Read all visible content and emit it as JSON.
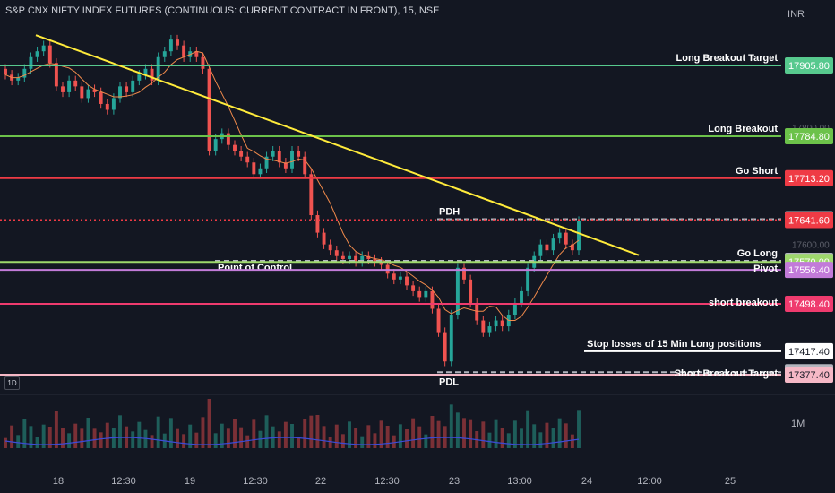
{
  "title": "S&P CNX NIFTY INDEX FUTURES (CONTINUOUS: CURRENT CONTRACT IN FRONT), 15, NSE",
  "currency": "INR",
  "volume_axis_label": "1M",
  "timeframe_badge": "1D",
  "colors": {
    "background": "#131722",
    "up": "#26a69a",
    "down": "#ef5350",
    "trendline": "#ffeb3b",
    "ma": "#f08a4b",
    "vol_ma": "#3c4bd8"
  },
  "chart_data": {
    "type": "candlestick",
    "x_ticks": [
      "18",
      "12:30",
      "19",
      "12:30",
      "22",
      "12:30",
      "23",
      "13:00",
      "24",
      "12:00",
      "25"
    ],
    "y_ticks_faint": [
      "17800.00",
      "17600.00"
    ],
    "horizontal_levels": [
      {
        "label": "Long Breakout Target",
        "price_label": "17905.80",
        "value": 17905.8,
        "color": "#57c98e"
      },
      {
        "label": "Long Breakout",
        "price_label": "17784.80",
        "value": 17784.8,
        "color": "#6cc24a"
      },
      {
        "label": "Go Short",
        "price_label": "17713.20",
        "value": 17713.2,
        "color": "#ef3b45"
      },
      {
        "label": "PDH",
        "price_label": "17643.05",
        "value": 17643.05,
        "color": "#b2b5be",
        "style": "dashed"
      },
      {
        "label": "",
        "price_label": "17641.60",
        "value": 17641.6,
        "color": "#ef3b45",
        "style": "dotted"
      },
      {
        "label": "Go Long",
        "price_label": "17571.95",
        "value": 17571.95,
        "color": "#b2b5be",
        "style": "dashed"
      },
      {
        "label": "Point of Control",
        "price_label": "17570.00",
        "value": 17570.0,
        "color": "#9ed86c"
      },
      {
        "label": "Pivot",
        "price_label": "17556.40",
        "value": 17556.4,
        "color": "#c27bd9"
      },
      {
        "label": "short breakout",
        "price_label": "17498.40",
        "value": 17498.4,
        "color": "#ef3b6e"
      },
      {
        "label": "Stop losses of 15 Min Long positions",
        "price_label": "17417.40",
        "value": 17417.4,
        "color": "#ffffff"
      },
      {
        "label": "PDL",
        "price_label": "17381.60",
        "value": 17381.6,
        "color": "#b2b5be",
        "style": "dashed"
      },
      {
        "label": "Short  Breakout Target",
        "price_label": "17377.40",
        "value": 17377.4,
        "color": "#f5b8c6"
      }
    ],
    "trendline": {
      "from": 17950,
      "to": 17600
    },
    "close_series": [
      17890,
      17880,
      17885,
      17900,
      17920,
      17930,
      17940,
      17910,
      17870,
      17860,
      17880,
      17870,
      17850,
      17865,
      17860,
      17840,
      17830,
      17850,
      17870,
      17860,
      17880,
      17890,
      17900,
      17880,
      17920,
      17930,
      17950,
      17940,
      17920,
      17930,
      17920,
      17900,
      17760,
      17780,
      17790,
      17770,
      17760,
      17750,
      17740,
      17720,
      17730,
      17750,
      17760,
      17740,
      17730,
      17760,
      17750,
      17720,
      17650,
      17620,
      17600,
      17590,
      17580,
      17575,
      17580,
      17570,
      17580,
      17575,
      17570,
      17565,
      17550,
      17540,
      17545,
      17530,
      17520,
      17510,
      17520,
      17490,
      17450,
      17400,
      17480,
      17560,
      17540,
      17500,
      17470,
      17450,
      17460,
      17470,
      17460,
      17480,
      17500,
      17520,
      17560,
      17580,
      17600,
      17590,
      17610,
      17620,
      17600,
      17590,
      17640
    ]
  }
}
